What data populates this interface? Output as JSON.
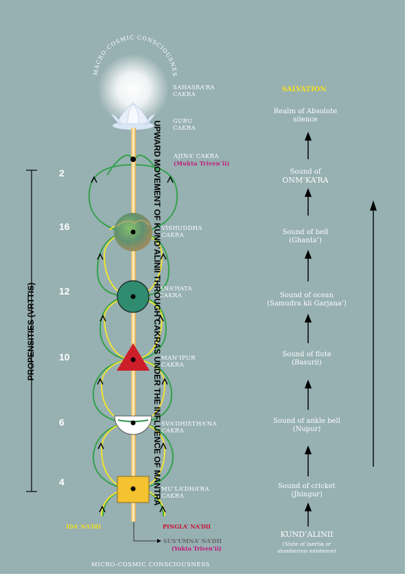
{
  "macro_label": "MACRO-COSMIC CONSCIOUSNESS",
  "micro_label": "MICRO-COSMIC CONSCIOUSNESS",
  "vertical_left": "PROPENSITIES (VRTTIS)",
  "vertical_right": "UPWARD MOVEMENT OF KUND’ALINII THROUGH CAKRAS UNDER THE INFLUENCE OF MANTRA",
  "cakras": [
    {
      "line1": "SAHASRA’RA",
      "line2": "CAKRA"
    },
    {
      "line1": "GURU",
      "line2": "CAKRA"
    },
    {
      "line1": "AJINA’ CAKRA",
      "line2": "(Mukta Triven’ii)"
    },
    {
      "line1": "VISHUDDHA",
      "line2": "CAKRA"
    },
    {
      "line1": "ANA’HATA",
      "line2": "CAKRA"
    },
    {
      "line1": "MAN’IPUR",
      "line2": "CAKRA"
    },
    {
      "line1": "SVA’DHISTHA’NA",
      "line2": "CAKRA"
    },
    {
      "line1": "MU’LA’DHA’RA",
      "line2": "CAKRA"
    }
  ],
  "propensities": [
    "2",
    "16",
    "12",
    "10",
    "6",
    "4"
  ],
  "nadis": {
    "ida": "IDA’ NA’DII",
    "pingla": "PINGLA’ NA’DII",
    "susumna": "SUS’UMNA’ NA’DII",
    "susumna_sub": "(Yukta Triven’ii)"
  },
  "sounds": {
    "salvation": "SALVATION",
    "realm_1": "Realm of Absolute",
    "realm_2": "silence",
    "omkara_1": "Sound of",
    "omkara_2": "ONM’KA’RA",
    "bell_1": "Sound of bell",
    "bell_2": "(Ghanta’)",
    "ocean_1": "Sound of ocean",
    "ocean_2": "(Samudra kii Garjana’)",
    "flute_1": "Sound of  flute",
    "flute_2": "(Basurii)",
    "ankle_1": "Sound of ankle bell",
    "ankle_2": "(Nupur)",
    "cricket_1": "Sound of cricket",
    "cricket_2": "(Jhingur)",
    "kundalini": "KUND’ALINII",
    "kundalini_sub1": "(State of inertia or",
    "kundalini_sub2": "slumberous existence)"
  },
  "colors": {
    "background": "#97b0b2",
    "ida": "#f2e530",
    "pingla": "#33a24a",
    "text": "#ffffff",
    "accent_yellow": "#f5e020",
    "accent_red": "#c8102e",
    "accent_magenta": "#c0187a"
  }
}
